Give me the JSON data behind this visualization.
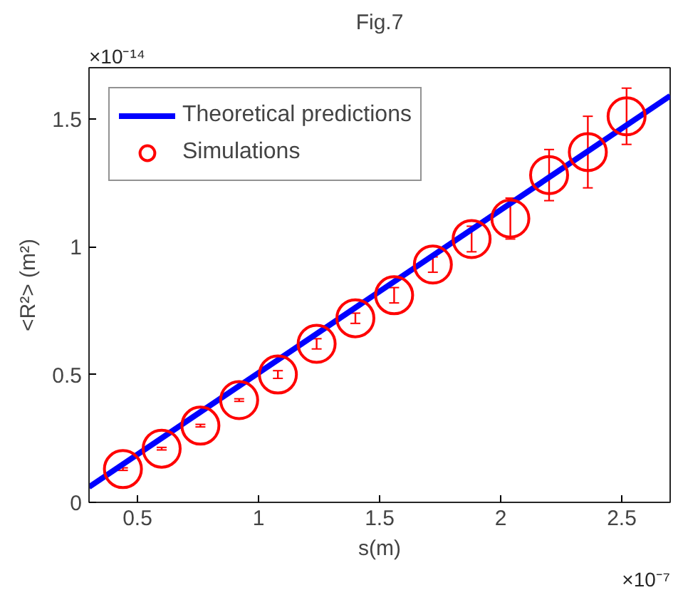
{
  "chart_data": {
    "type": "scatter",
    "title": "Fig.7",
    "xlabel": "s(m)",
    "ylabel": "<R²> (m²)",
    "xlim": [
      0.3,
      2.7
    ],
    "ylim": [
      0,
      1.7
    ],
    "xticks": [
      0.5,
      1,
      1.5,
      2,
      2.5
    ],
    "yticks": [
      0,
      0.5,
      1,
      1.5
    ],
    "annotations": [
      "×10⁻¹⁴",
      "×10⁻⁷"
    ],
    "legend": "top left",
    "grid": false,
    "series": [
      {
        "name": "Theoretical predictions",
        "type": "line",
        "color": "#0000ff",
        "line_style": "solid",
        "marker": "none",
        "x": [
          0.3,
          2.7
        ],
        "values": [
          0.06,
          1.59
        ]
      },
      {
        "name": "Simulations",
        "color": "#ff0000",
        "marker": "circle",
        "x": [
          0.44,
          0.6,
          0.76,
          0.92,
          1.08,
          1.24,
          1.4,
          1.56,
          1.72,
          1.88,
          2.04,
          2.2,
          2.36,
          2.52
        ],
        "values": [
          0.13,
          0.21,
          0.3,
          0.4,
          0.5,
          0.62,
          0.72,
          0.81,
          0.93,
          1.03,
          1.11,
          1.28,
          1.37,
          1.51
        ],
        "errors": [
          0.005,
          0.005,
          0.005,
          0.005,
          0.015,
          0.02,
          0.02,
          0.03,
          0.03,
          0.05,
          0.08,
          0.1,
          0.14,
          0.11
        ]
      }
    ]
  }
}
